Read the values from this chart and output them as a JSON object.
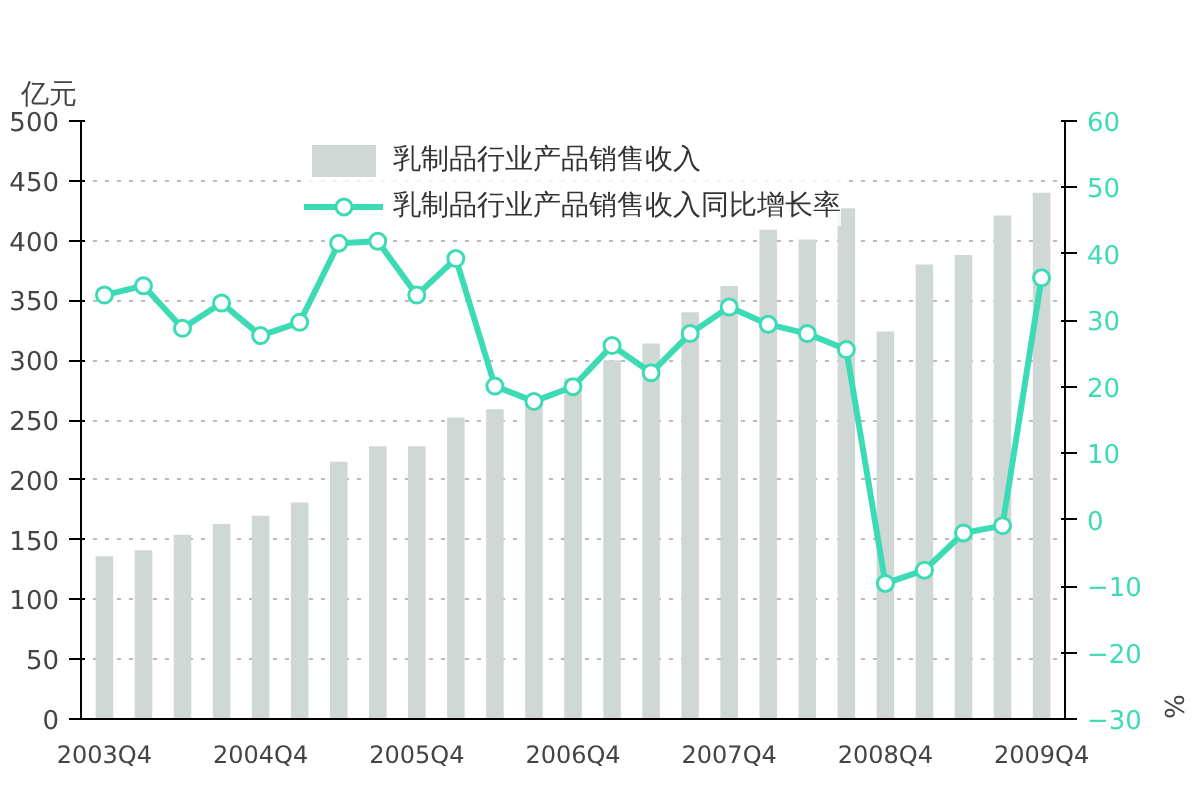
{
  "chart_data": {
    "type": "bar",
    "ylabel": "亿元",
    "y2label": "%",
    "categories": [
      "2003Q4",
      null,
      null,
      null,
      "2004Q4",
      null,
      null,
      null,
      "2005Q4",
      null,
      null,
      null,
      "2006Q4",
      null,
      null,
      null,
      "2007Q4",
      null,
      null,
      null,
      "2008Q4",
      null,
      null,
      null,
      "2009Q4"
    ],
    "series": [
      {
        "name": "乳制品行业产品销售收入",
        "color": "#d0d8d6",
        "values": [
          136,
          141,
          154,
          163,
          170,
          181,
          215,
          228,
          228,
          252,
          259,
          265,
          285,
          300,
          314,
          340,
          362,
          409,
          401,
          427,
          324,
          380,
          388,
          421,
          440
        ]
      },
      {
        "name": "乳制品行业产品销售收入同比增长率",
        "type": "line",
        "axis": "y2",
        "color": "#3ddbb5",
        "values": [
          33.8,
          35.2,
          28.8,
          32.6,
          27.7,
          29.7,
          41.6,
          41.9,
          33.8,
          39.3,
          20.1,
          17.8,
          20.0,
          26.2,
          22.1,
          28.0,
          32.0,
          29.4,
          28.0,
          25.6,
          -9.6,
          -7.6,
          -2.0,
          -0.9,
          36.4
        ]
      }
    ],
    "ylim": [
      0,
      500
    ],
    "yticks": [
      0,
      50,
      100,
      150,
      200,
      250,
      300,
      350,
      400,
      450,
      500
    ],
    "y2lim": [
      -30,
      60
    ],
    "y2ticks": [
      -30,
      -20,
      -10,
      0,
      10,
      20,
      30,
      40,
      50,
      60
    ],
    "grid": "y",
    "legend": "top",
    "marker": "circle"
  }
}
